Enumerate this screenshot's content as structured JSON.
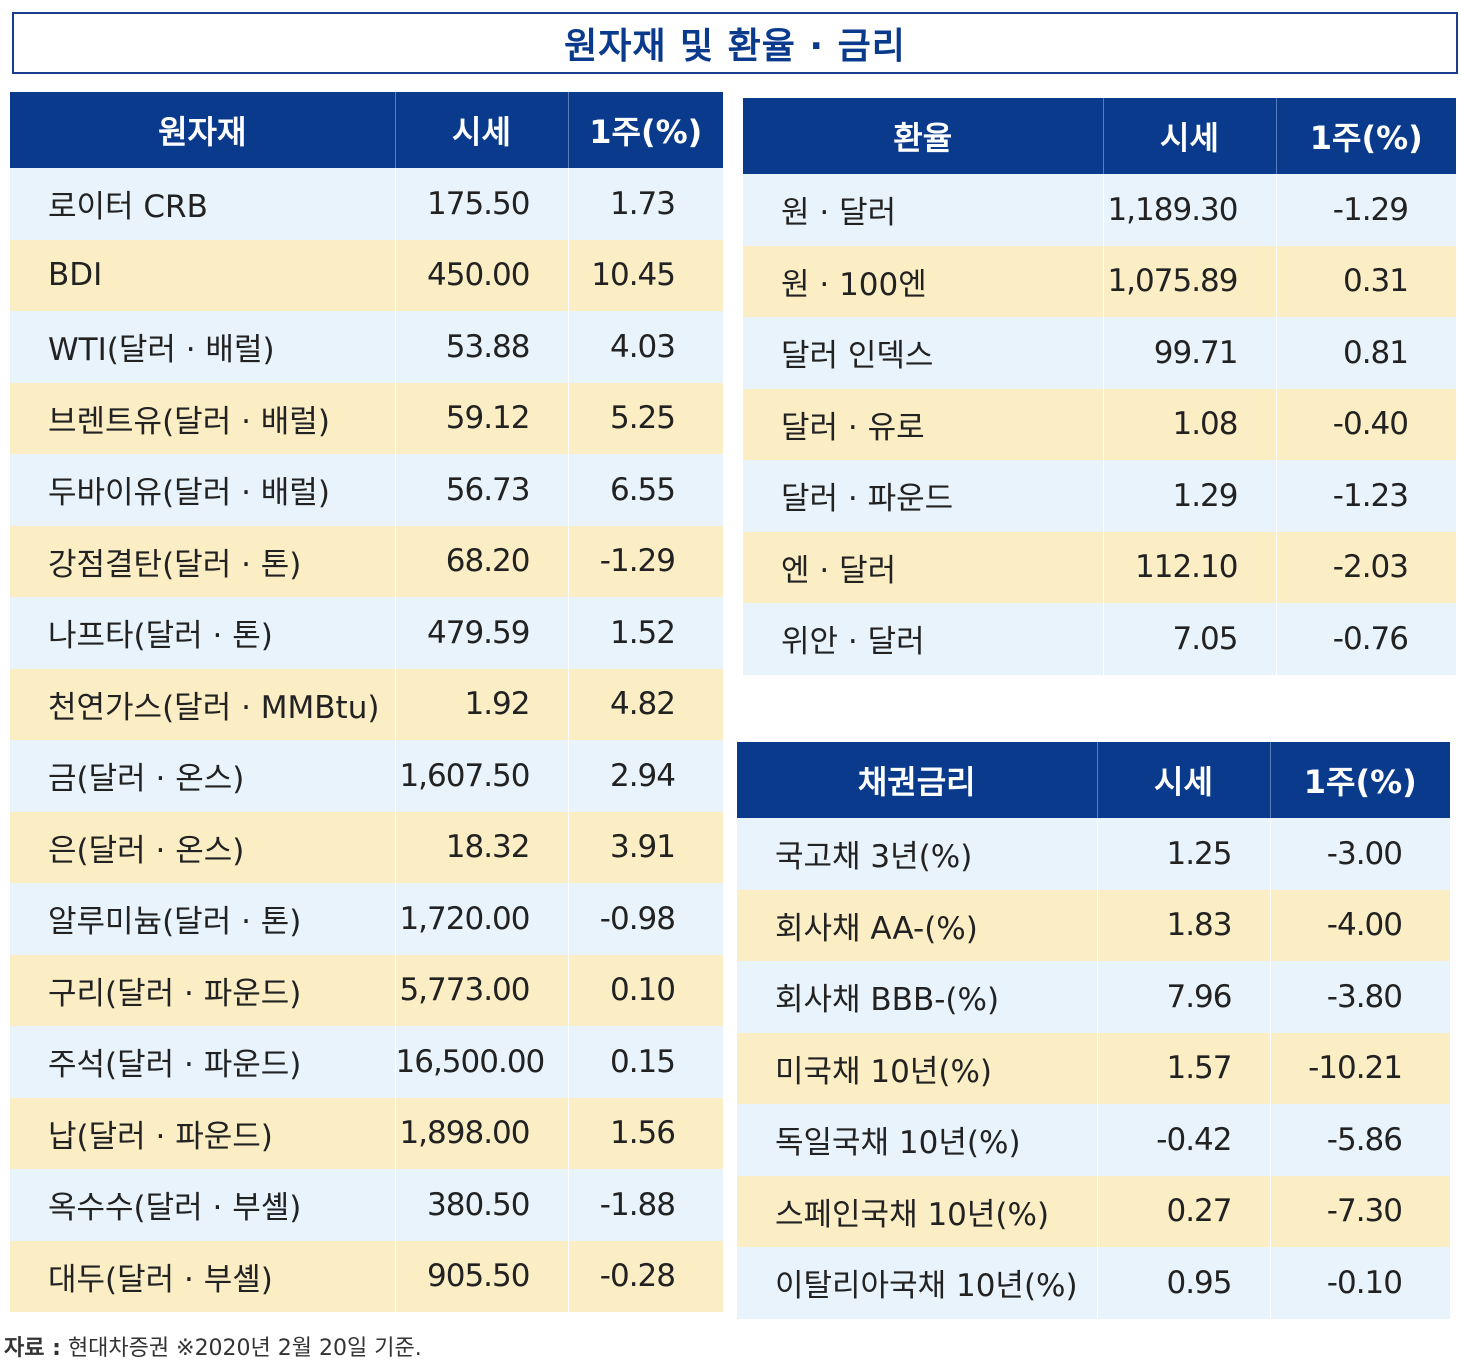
{
  "title": "원자재 및 환율 · 금리",
  "commodities": {
    "headers": [
      "원자재",
      "시세",
      "1주(%)"
    ],
    "rows": [
      {
        "name": "로이터 CRB",
        "price": "175.50",
        "change": "1.73"
      },
      {
        "name": "BDI",
        "price": "450.00",
        "change": "10.45"
      },
      {
        "name": "WTI(달러 · 배럴)",
        "price": "53.88",
        "change": "4.03"
      },
      {
        "name": "브렌트유(달러 · 배럴)",
        "price": "59.12",
        "change": "5.25"
      },
      {
        "name": "두바이유(달러 · 배럴)",
        "price": "56.73",
        "change": "6.55"
      },
      {
        "name": "강점결탄(달러 · 톤)",
        "price": "68.20",
        "change": "-1.29"
      },
      {
        "name": "나프타(달러 · 톤)",
        "price": "479.59",
        "change": "1.52"
      },
      {
        "name": "천연가스(달러 · MMBtu)",
        "price": "1.92",
        "change": "4.82"
      },
      {
        "name": "금(달러 · 온스)",
        "price": "1,607.50",
        "change": "2.94"
      },
      {
        "name": "은(달러 · 온스)",
        "price": "18.32",
        "change": "3.91"
      },
      {
        "name": "알루미늄(달러 · 톤)",
        "price": "1,720.00",
        "change": "-0.98"
      },
      {
        "name": "구리(달러 · 파운드)",
        "price": "5,773.00",
        "change": "0.10"
      },
      {
        "name": "주석(달러 · 파운드)",
        "price": "16,500.00",
        "change": "0.15"
      },
      {
        "name": "납(달러 · 파운드)",
        "price": "1,898.00",
        "change": "1.56"
      },
      {
        "name": "옥수수(달러 · 부셸)",
        "price": "380.50",
        "change": "-1.88"
      },
      {
        "name": "대두(달러 · 부셸)",
        "price": "905.50",
        "change": "-0.28"
      }
    ]
  },
  "exchange": {
    "headers": [
      "환율",
      "시세",
      "1주(%)"
    ],
    "rows": [
      {
        "name": "원 · 달러",
        "price": "1,189.30",
        "change": "-1.29"
      },
      {
        "name": "원 · 100엔",
        "price": "1,075.89",
        "change": "0.31"
      },
      {
        "name": "달러 인덱스",
        "price": "99.71",
        "change": "0.81"
      },
      {
        "name": "달러 · 유로",
        "price": "1.08",
        "change": "-0.40"
      },
      {
        "name": "달러 · 파운드",
        "price": "1.29",
        "change": "-1.23"
      },
      {
        "name": "엔 · 달러",
        "price": "112.10",
        "change": "-2.03"
      },
      {
        "name": "위안 · 달러",
        "price": "7.05",
        "change": "-0.76"
      }
    ]
  },
  "bonds": {
    "headers": [
      "채권금리",
      "시세",
      "1주(%)"
    ],
    "rows": [
      {
        "name": "국고채 3년(%)",
        "price": "1.25",
        "change": "-3.00"
      },
      {
        "name": "회사채 AA-(%)",
        "price": "1.83",
        "change": "-4.00"
      },
      {
        "name": "회사채 BBB-(%)",
        "price": "7.96",
        "change": "-3.80"
      },
      {
        "name": "미국채 10년(%)",
        "price": "1.57",
        "change": "-10.21"
      },
      {
        "name": "독일국채 10년(%)",
        "price": "-0.42",
        "change": "-5.86"
      },
      {
        "name": "스페인국채 10년(%)",
        "price": "0.27",
        "change": "-7.30"
      },
      {
        "name": "이탈리아국채 10년(%)",
        "price": "0.95",
        "change": "-0.10"
      }
    ]
  },
  "source": {
    "label": "자료 :",
    "text": "현대차증권 ※2020년 2월 20일 기준."
  },
  "colors": {
    "header_bg": "#0a3a8c",
    "row_light": "#e8f3fb",
    "row_cream": "#fbeec5"
  }
}
